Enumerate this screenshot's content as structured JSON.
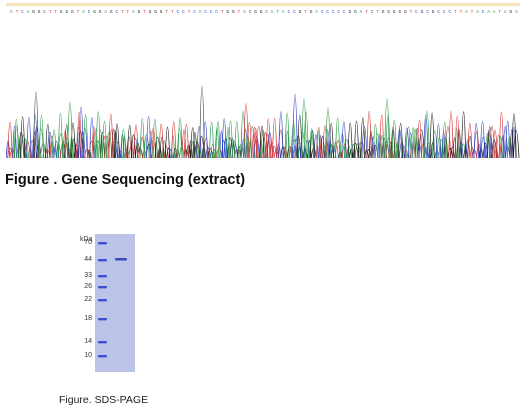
{
  "sequencing": {
    "caption": "Figure . Gene Sequencing (extract)",
    "colors": {
      "A": "#2e9e4a",
      "C": "#3347c9",
      "G": "#222222",
      "T": "#d43a3a"
    }
  },
  "sds_page": {
    "caption": "Figure. SDS-PAGE",
    "unit_label": "kDa",
    "markers": [
      "70",
      "44",
      "33",
      "26",
      "22",
      "18",
      "14",
      "10"
    ],
    "sample_band_kda": "44",
    "colors": {
      "gel": "#bcc3e8",
      "marker": "#3a4fc9",
      "band": "#3b4ab8"
    }
  }
}
